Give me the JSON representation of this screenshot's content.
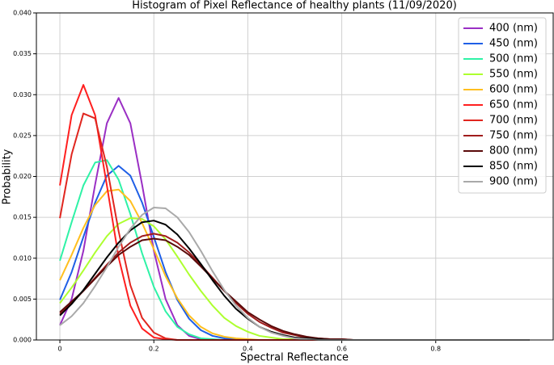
{
  "chart_data": {
    "type": "line",
    "title": "Histogram of Pixel Reflectance of healthy plants (11/09/2020)",
    "xlabel": "Spectral Reflectance",
    "ylabel": "Probability",
    "xlim": [
      -0.05,
      1.05
    ],
    "ylim": [
      0,
      0.04
    ],
    "xticks": [
      0,
      0.2,
      0.4,
      0.6,
      0.8
    ],
    "yticks": [
      {
        "value": 0,
        "label": "0.000"
      },
      {
        "value": 0.005,
        "label": "0.005"
      },
      {
        "value": 0.01,
        "label": "0.010"
      },
      {
        "value": 0.015,
        "label": "0.015"
      },
      {
        "value": 0.02,
        "label": "0.020"
      },
      {
        "value": 0.025,
        "label": "0.025"
      },
      {
        "value": 0.03,
        "label": "0.030"
      },
      {
        "value": 0.035,
        "label": "0.035"
      },
      {
        "value": 0.04,
        "label": "0.040"
      }
    ],
    "grid": true,
    "legend": "upper right",
    "x": [
      0,
      0.025,
      0.05,
      0.075,
      0.1,
      0.125,
      0.15,
      0.175,
      0.2,
      0.225,
      0.25,
      0.275,
      0.3,
      0.325,
      0.35,
      0.375,
      0.4,
      0.425,
      0.45,
      0.475,
      0.5,
      0.525,
      0.55,
      0.575,
      0.6,
      0.625,
      0.65,
      0.675,
      0.7,
      0.725,
      0.75,
      0.775,
      0.8,
      0.825,
      0.85,
      0.875,
      0.9,
      0.925,
      0.95,
      0.975,
      1.0
    ],
    "series": [
      {
        "name": "400 (nm)",
        "color": "#9a2fc4",
        "values": [
          0.0018,
          0.005,
          0.0109,
          0.019,
          0.0265,
          0.0296,
          0.0265,
          0.019,
          0.0109,
          0.005,
          0.0018,
          0.0005,
          0.0001,
          0,
          0,
          0,
          0,
          0,
          0,
          0,
          0,
          0,
          0,
          0,
          0,
          0,
          0,
          0,
          0,
          0,
          0,
          0,
          0,
          0,
          0,
          0,
          0,
          0,
          0,
          0,
          0
        ]
      },
      {
        "name": "450 (nm)",
        "color": "#1f5fe6",
        "values": [
          0.0049,
          0.0083,
          0.0126,
          0.0168,
          0.0201,
          0.0213,
          0.0201,
          0.0168,
          0.0126,
          0.0083,
          0.0049,
          0.0026,
          0.0012,
          0.0005,
          0.0002,
          0.0001,
          0,
          0,
          0,
          0,
          0,
          0,
          0,
          0,
          0,
          0,
          0,
          0,
          0,
          0,
          0,
          0,
          0,
          0,
          0,
          0,
          0,
          0,
          0,
          0,
          0
        ]
      },
      {
        "name": "500 (nm)",
        "color": "#2ef2a6",
        "values": [
          0.0097,
          0.0144,
          0.0189,
          0.0217,
          0.022,
          0.0196,
          0.0154,
          0.0106,
          0.0065,
          0.0035,
          0.0016,
          0.0007,
          0.0002,
          0.0001,
          0,
          0,
          0,
          0,
          0,
          0,
          0,
          0,
          0,
          0,
          0,
          0,
          0,
          0,
          0,
          0,
          0,
          0,
          0,
          0,
          0,
          0,
          0,
          0,
          0,
          0,
          0
        ]
      },
      {
        "name": "550 (nm)",
        "color": "#adff2f",
        "values": [
          0.0045,
          0.0064,
          0.0085,
          0.0107,
          0.0127,
          0.0142,
          0.0149,
          0.0148,
          0.0139,
          0.0123,
          0.0102,
          0.008,
          0.006,
          0.0042,
          0.0027,
          0.0017,
          0.001,
          0.0005,
          0.0003,
          0.0001,
          0.0001,
          0,
          0,
          0,
          0,
          0,
          0,
          0,
          0,
          0,
          0,
          0,
          0,
          0,
          0,
          0,
          0,
          0,
          0,
          0,
          0
        ]
      },
      {
        "name": "600 (nm)",
        "color": "#ffbf1f",
        "values": [
          0.0073,
          0.0104,
          0.0137,
          0.0165,
          0.0182,
          0.0184,
          0.017,
          0.0143,
          0.0111,
          0.0078,
          0.0051,
          0.003,
          0.0016,
          0.0008,
          0.0004,
          0.0002,
          0.0001,
          0,
          0,
          0,
          0,
          0,
          0,
          0,
          0,
          0,
          0,
          0,
          0,
          0,
          0,
          0,
          0,
          0,
          0,
          0,
          0,
          0,
          0,
          0,
          0
        ]
      },
      {
        "name": "650 (nm)",
        "color": "#ff1f1f",
        "values": [
          0.0189,
          0.0275,
          0.0312,
          0.0275,
          0.0189,
          0.0101,
          0.0042,
          0.0014,
          0.0003,
          0.0001,
          0,
          0,
          0,
          0,
          0,
          0,
          0,
          0,
          0,
          0,
          0,
          0,
          0,
          0,
          0,
          0,
          0,
          0,
          0,
          0,
          0,
          0,
          0,
          0,
          0,
          0,
          0,
          0,
          0,
          0,
          0
        ]
      },
      {
        "name": "700 (nm)",
        "color": "#e0261f",
        "values": [
          0.0149,
          0.0227,
          0.0277,
          0.0271,
          0.0212,
          0.0133,
          0.0067,
          0.0027,
          0.0009,
          0.0002,
          0,
          0,
          0,
          0,
          0,
          0,
          0,
          0,
          0,
          0,
          0,
          0,
          0,
          0,
          0,
          0,
          0,
          0,
          0,
          0,
          0,
          0,
          0,
          0,
          0,
          0,
          0,
          0,
          0,
          0,
          0
        ]
      },
      {
        "name": "750 (nm)",
        "color": "#a01c1c",
        "values": [
          0.0032,
          0.0045,
          0.006,
          0.0076,
          0.0092,
          0.0107,
          0.0119,
          0.0127,
          0.013,
          0.0127,
          0.0119,
          0.0107,
          0.0092,
          0.0076,
          0.006,
          0.0045,
          0.0032,
          0.0022,
          0.0015,
          0.0009,
          0.0006,
          0.0003,
          0.0002,
          0.0001,
          0.0001,
          0,
          0,
          0,
          0,
          0,
          0,
          0,
          0,
          0,
          0,
          0,
          0,
          0,
          0,
          0,
          0
        ]
      },
      {
        "name": "800 (nm)",
        "color": "#5a0a0a",
        "values": [
          0.0034,
          0.0047,
          0.006,
          0.0075,
          0.009,
          0.0104,
          0.0114,
          0.0122,
          0.0124,
          0.0122,
          0.0114,
          0.0104,
          0.009,
          0.0075,
          0.006,
          0.0047,
          0.0034,
          0.0025,
          0.0017,
          0.0011,
          0.0007,
          0.0004,
          0.0002,
          0.0001,
          0.0001,
          0,
          0,
          0,
          0,
          0,
          0,
          0,
          0,
          0,
          0,
          0,
          0,
          0,
          0,
          0,
          0
        ]
      },
      {
        "name": "850 (nm)",
        "color": "#000000",
        "values": [
          0.003,
          0.0044,
          0.0061,
          0.0081,
          0.0101,
          0.0119,
          0.0134,
          0.0144,
          0.0146,
          0.0141,
          0.0129,
          0.0112,
          0.0093,
          0.0073,
          0.0054,
          0.0038,
          0.0026,
          0.0016,
          0.001,
          0.0006,
          0.0003,
          0.0002,
          0.0001,
          0,
          0,
          0,
          0,
          0,
          0,
          0,
          0,
          0,
          0,
          0,
          0,
          0,
          0,
          0,
          0,
          0,
          0
        ]
      },
      {
        "name": "900 (nm)",
        "color": "#a9a9a9",
        "values": [
          0.0018,
          0.0029,
          0.0045,
          0.0066,
          0.0089,
          0.0114,
          0.0136,
          0.0153,
          0.0162,
          0.0161,
          0.015,
          0.0132,
          0.0109,
          0.0084,
          0.0061,
          0.0042,
          0.0027,
          0.0016,
          0.0009,
          0.0005,
          0.0002,
          0.0001,
          0,
          0,
          0,
          0,
          0,
          0,
          0,
          0,
          0,
          0,
          0,
          0,
          0,
          0,
          0,
          0,
          0,
          0,
          0
        ]
      }
    ]
  }
}
